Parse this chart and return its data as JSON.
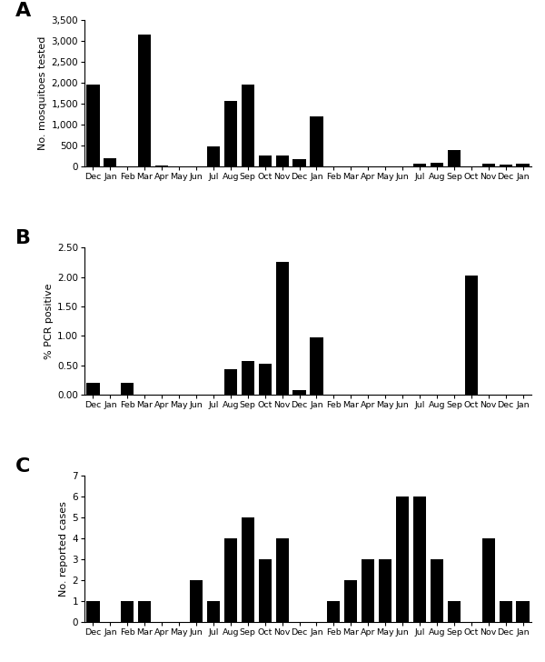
{
  "panel_A": {
    "labels": [
      "Dec",
      "Jan",
      "Feb",
      "Mar",
      "Apr",
      "May",
      "Jun",
      "Jul",
      "Aug",
      "Sep",
      "Oct",
      "Nov",
      "Dec",
      "Jan",
      "Feb",
      "Mar",
      "Apr",
      "May",
      "Jun",
      "Jul",
      "Aug",
      "Sep",
      "Oct",
      "Nov",
      "Dec",
      "Jan"
    ],
    "values": [
      1950,
      200,
      0,
      3150,
      25,
      0,
      0,
      480,
      1575,
      1950,
      275,
      270,
      190,
      1190,
      0,
      0,
      0,
      0,
      0,
      75,
      100,
      400,
      0,
      75,
      50,
      75
    ],
    "ylabel": "No. mosquitoes tested",
    "ylim": [
      0,
      3500
    ],
    "yticks": [
      0,
      500,
      1000,
      1500,
      2000,
      2500,
      3000,
      3500
    ],
    "ytick_labels": [
      "0",
      "500",
      "1,000",
      "1,500",
      "2,000",
      "2,500",
      "3,000",
      "3,500"
    ],
    "panel_label": "A"
  },
  "panel_B": {
    "labels": [
      "Dec",
      "Jan",
      "Feb",
      "Mar",
      "Apr",
      "May",
      "Jun",
      "Jul",
      "Aug",
      "Sep",
      "Oct",
      "Nov",
      "Dec",
      "Jan",
      "Feb",
      "Mar",
      "Apr",
      "May",
      "Jun",
      "Jul",
      "Aug",
      "Sep",
      "Oct",
      "Nov",
      "Dec",
      "Jan"
    ],
    "values": [
      0.2,
      0.0,
      0.2,
      0.0,
      0.0,
      0.0,
      0.0,
      0.0,
      0.43,
      0.57,
      0.52,
      2.25,
      0.07,
      0.98,
      0.0,
      0.0,
      0.0,
      0.0,
      0.0,
      0.0,
      0.0,
      0.0,
      2.02,
      0.0,
      0.0,
      0.0
    ],
    "ylabel": "% PCR positive",
    "ylim": [
      0,
      2.5
    ],
    "yticks": [
      0.0,
      0.5,
      1.0,
      1.5,
      2.0,
      2.5
    ],
    "ytick_labels": [
      "0.00",
      "0.50",
      "1.00",
      "1.50",
      "2.00",
      "2.50"
    ],
    "panel_label": "B"
  },
  "panel_C": {
    "labels": [
      "Dec",
      "Jan",
      "Feb",
      "Mar",
      "Apr",
      "May",
      "Jun",
      "Jul",
      "Aug",
      "Sep",
      "Oct",
      "Nov",
      "Dec",
      "Jan",
      "Feb",
      "Mar",
      "Apr",
      "May",
      "Jun",
      "Jul",
      "Aug",
      "Sep",
      "Oct",
      "Nov",
      "Dec",
      "Jan"
    ],
    "values": [
      1,
      0,
      1,
      1,
      0,
      0,
      2,
      1,
      4,
      5,
      3,
      4,
      0,
      0,
      1,
      2,
      3,
      3,
      6,
      6,
      3,
      1,
      0,
      4,
      1,
      1
    ],
    "ylabel": "No. reported cases",
    "ylim": [
      0,
      7
    ],
    "yticks": [
      0,
      1,
      2,
      3,
      4,
      5,
      6,
      7
    ],
    "ytick_labels": [
      "0",
      "1",
      "2",
      "3",
      "4",
      "5",
      "6",
      "7"
    ],
    "panel_label": "C"
  },
  "bar_color": "#000000",
  "bar_width": 0.75,
  "figsize": [
    6.0,
    7.28
  ],
  "dpi": 100,
  "xtick_fontsize": 6.8,
  "ytick_fontsize": 7.5,
  "ylabel_fontsize": 8.0,
  "panel_label_fontsize": 16
}
